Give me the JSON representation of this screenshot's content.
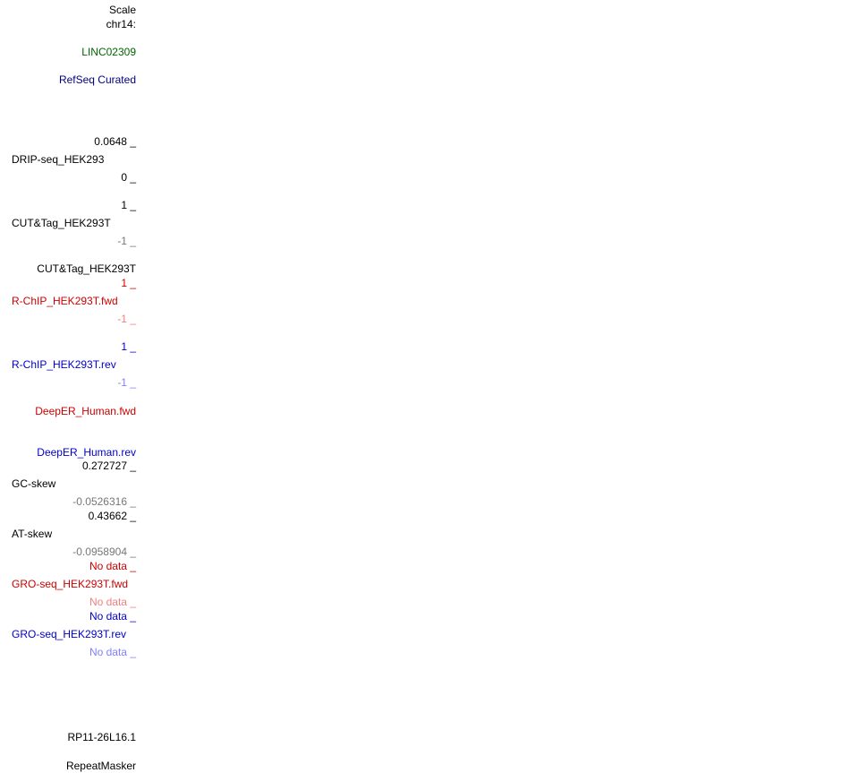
{
  "colors": {
    "black": "#000000",
    "grey": "#777777",
    "green": "#006400",
    "navy": "#000080",
    "red": "#cc0000",
    "light_red": "#f08080",
    "blue": "#0000cc",
    "light_blue": "#8080ff"
  },
  "header": {
    "scale": "Scale",
    "chrom": "chr14:"
  },
  "tracks": {
    "linc": "LINC02309",
    "refseq": "RefSeq Curated",
    "drip": {
      "max": "0.0648 _",
      "name": "DRIP-seq_HEK293",
      "min": "0 _"
    },
    "cuttag": {
      "max": "1 _",
      "name": "CUT&Tag_HEK293T",
      "min": "-1 _"
    },
    "cuttag_title": "CUT&Tag_HEK293T",
    "rchip_fwd": {
      "max": "1 _",
      "name": "R-ChIP_HEK293T.fwd",
      "min": "-1 _"
    },
    "rchip_rev": {
      "max": "1 _",
      "name": "R-ChIP_HEK293T.rev",
      "min": "-1 _"
    },
    "deeper_fwd": "DeepER_Human.fwd",
    "deeper_rev": "DeepER_Human.rev",
    "gc_skew": {
      "max": "0.272727 _",
      "name": "GC-skew",
      "min": "-0.0526316 _"
    },
    "at_skew": {
      "max": "0.43662 _",
      "name": "AT-skew",
      "min": "-0.0958904 _"
    },
    "gro_fwd": {
      "max": "No data _",
      "name": "GRO-seq_HEK293T.fwd",
      "min": "No data _"
    },
    "gro_rev": {
      "max": "No data _",
      "name": "GRO-seq_HEK293T.rev",
      "min": "No data _"
    },
    "rp11": "RP11-26L16.1",
    "repeatmasker": "RepeatMasker"
  }
}
